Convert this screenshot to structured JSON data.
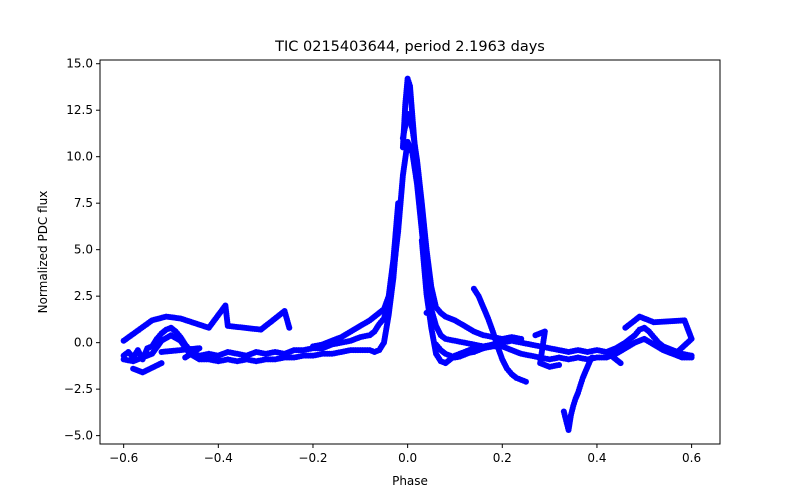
{
  "chart_data": {
    "type": "scatter",
    "title": "TIC 0215403644, period 2.1963 days",
    "xlabel": "Phase",
    "ylabel": "Normalized PDC flux",
    "xlim": [
      -0.65,
      0.66
    ],
    "ylim": [
      -5.45,
      15.2
    ],
    "xticks": [
      -0.6,
      -0.4,
      -0.2,
      0.0,
      0.2,
      0.4,
      0.6
    ],
    "xtick_labels": [
      "−0.6",
      "−0.4",
      "−0.2",
      "0.0",
      "0.2",
      "0.4",
      "0.6"
    ],
    "yticks": [
      -5.0,
      -2.5,
      0.0,
      2.5,
      5.0,
      7.5,
      10.0,
      12.5,
      15.0
    ],
    "ytick_labels": [
      "−5.0",
      "−2.5",
      "0.0",
      "2.5",
      "5.0",
      "7.5",
      "10.0",
      "12.5",
      "15.0"
    ],
    "grid": false,
    "marker_color": "#0000ff",
    "series": [
      {
        "points": [
          [
            -0.6,
            -0.7
          ],
          [
            -0.59,
            -0.5
          ],
          [
            -0.58,
            -0.8
          ],
          [
            -0.57,
            -0.4
          ],
          [
            -0.56,
            -0.9
          ],
          [
            -0.55,
            -0.3
          ],
          [
            -0.54,
            -0.2
          ],
          [
            -0.53,
            0.2
          ],
          [
            -0.52,
            0.5
          ],
          [
            -0.51,
            0.7
          ],
          [
            -0.5,
            0.8
          ],
          [
            -0.49,
            0.6
          ],
          [
            -0.48,
            0.3
          ],
          [
            -0.47,
            -0.1
          ],
          [
            -0.46,
            -0.4
          ],
          [
            -0.45,
            -0.6
          ],
          [
            -0.44,
            -0.7
          ],
          [
            -0.42,
            -0.6
          ],
          [
            -0.4,
            -0.7
          ],
          [
            -0.38,
            -0.5
          ],
          [
            -0.36,
            -0.6
          ],
          [
            -0.34,
            -0.7
          ],
          [
            -0.32,
            -0.5
          ],
          [
            -0.3,
            -0.6
          ],
          [
            -0.28,
            -0.5
          ],
          [
            -0.26,
            -0.6
          ],
          [
            -0.24,
            -0.4
          ],
          [
            -0.22,
            -0.4
          ],
          [
            -0.2,
            -0.3
          ],
          [
            -0.18,
            -0.3
          ],
          [
            -0.16,
            -0.1
          ],
          [
            -0.14,
            0.0
          ],
          [
            -0.12,
            0.1
          ],
          [
            -0.1,
            0.3
          ],
          [
            -0.08,
            0.4
          ],
          [
            -0.07,
            0.6
          ],
          [
            -0.06,
            1.0
          ],
          [
            -0.05,
            1.3
          ],
          [
            -0.04,
            2.2
          ],
          [
            -0.03,
            3.8
          ],
          [
            -0.02,
            6.0
          ],
          [
            -0.01,
            9.0
          ],
          [
            0.0,
            10.8
          ],
          [
            0.01,
            10.2
          ],
          [
            0.02,
            8.5
          ],
          [
            0.03,
            6.0
          ],
          [
            0.04,
            3.5
          ],
          [
            0.05,
            1.8
          ],
          [
            0.06,
            0.9
          ],
          [
            0.07,
            0.4
          ],
          [
            0.08,
            0.2
          ],
          [
            0.1,
            0.1
          ],
          [
            0.12,
            0.0
          ],
          [
            0.14,
            -0.1
          ],
          [
            0.16,
            -0.2
          ],
          [
            0.18,
            -0.1
          ],
          [
            0.2,
            0.0
          ],
          [
            0.22,
            0.1
          ],
          [
            0.24,
            0.0
          ],
          [
            0.26,
            -0.1
          ],
          [
            0.28,
            -0.2
          ],
          [
            0.3,
            -0.3
          ],
          [
            0.32,
            -0.4
          ],
          [
            0.34,
            -0.5
          ],
          [
            0.36,
            -0.4
          ],
          [
            0.38,
            -0.5
          ],
          [
            0.4,
            -0.4
          ],
          [
            0.42,
            -0.5
          ],
          [
            0.44,
            -0.3
          ],
          [
            0.46,
            0.0
          ],
          [
            0.48,
            0.4
          ],
          [
            0.49,
            0.7
          ],
          [
            0.5,
            0.8
          ],
          [
            0.51,
            0.6
          ],
          [
            0.52,
            0.3
          ],
          [
            0.53,
            0.0
          ],
          [
            0.54,
            -0.2
          ],
          [
            0.56,
            -0.4
          ],
          [
            0.58,
            -0.6
          ],
          [
            0.6,
            -0.7
          ]
        ]
      },
      {
        "points": [
          [
            -0.6,
            -0.9
          ],
          [
            -0.58,
            -1.0
          ],
          [
            -0.56,
            -0.8
          ],
          [
            -0.54,
            -0.6
          ],
          [
            -0.52,
            0.1
          ],
          [
            -0.5,
            0.4
          ],
          [
            -0.48,
            0.1
          ],
          [
            -0.46,
            -0.6
          ],
          [
            -0.44,
            -0.9
          ],
          [
            -0.42,
            -0.9
          ],
          [
            -0.4,
            -1.0
          ],
          [
            -0.38,
            -0.9
          ],
          [
            -0.36,
            -1.0
          ],
          [
            -0.34,
            -0.9
          ],
          [
            -0.32,
            -1.0
          ],
          [
            -0.3,
            -0.9
          ],
          [
            -0.28,
            -0.9
          ],
          [
            -0.26,
            -0.8
          ],
          [
            -0.24,
            -0.8
          ],
          [
            -0.22,
            -0.7
          ],
          [
            -0.2,
            -0.7
          ],
          [
            -0.18,
            -0.6
          ],
          [
            -0.16,
            -0.6
          ],
          [
            -0.14,
            -0.5
          ],
          [
            -0.12,
            -0.4
          ],
          [
            -0.1,
            -0.4
          ],
          [
            -0.08,
            -0.4
          ],
          [
            -0.07,
            -0.5
          ],
          [
            -0.06,
            -0.4
          ],
          [
            -0.05,
            0.0
          ],
          [
            -0.04,
            1.5
          ],
          [
            -0.03,
            3.5
          ],
          [
            -0.02,
            6.5
          ],
          [
            -0.01,
            10.5
          ],
          [
            -0.005,
            12.8
          ],
          [
            0.0,
            14.2
          ],
          [
            0.005,
            13.8
          ],
          [
            0.01,
            12.2
          ],
          [
            0.02,
            9.0
          ],
          [
            0.03,
            5.5
          ],
          [
            0.04,
            2.6
          ],
          [
            0.05,
            0.8
          ],
          [
            0.06,
            -0.6
          ],
          [
            0.07,
            -1.0
          ],
          [
            0.08,
            -1.1
          ],
          [
            0.09,
            -0.9
          ],
          [
            0.1,
            -0.7
          ],
          [
            0.11,
            -0.6
          ],
          [
            0.12,
            -0.5
          ],
          [
            0.13,
            -0.4
          ],
          [
            0.14,
            -0.3
          ],
          [
            0.16,
            -0.3
          ],
          [
            0.18,
            -0.2
          ],
          [
            0.2,
            -0.2
          ],
          [
            0.22,
            -0.4
          ],
          [
            0.24,
            -0.6
          ],
          [
            0.26,
            -0.7
          ],
          [
            0.28,
            -0.8
          ],
          [
            0.3,
            -0.9
          ],
          [
            0.32,
            -0.8
          ],
          [
            0.34,
            -0.9
          ],
          [
            0.36,
            -0.8
          ],
          [
            0.38,
            -0.9
          ],
          [
            0.4,
            -0.8
          ],
          [
            0.42,
            -0.8
          ],
          [
            0.44,
            -0.6
          ],
          [
            0.46,
            -0.3
          ],
          [
            0.48,
            0.0
          ],
          [
            0.5,
            0.2
          ],
          [
            0.52,
            -0.1
          ],
          [
            0.54,
            -0.4
          ],
          [
            0.56,
            -0.6
          ],
          [
            0.58,
            -0.8
          ],
          [
            0.6,
            -0.8
          ]
        ]
      },
      {
        "points": [
          [
            -0.2,
            -0.2
          ],
          [
            -0.18,
            -0.1
          ],
          [
            -0.16,
            0.1
          ],
          [
            -0.14,
            0.3
          ],
          [
            -0.12,
            0.6
          ],
          [
            -0.1,
            0.9
          ],
          [
            -0.08,
            1.2
          ],
          [
            -0.07,
            1.4
          ],
          [
            -0.06,
            1.6
          ],
          [
            -0.05,
            1.8
          ],
          [
            -0.04,
            2.5
          ],
          [
            -0.03,
            4.5
          ],
          [
            -0.02,
            7.5
          ],
          [
            -0.01,
            11.0
          ],
          [
            0.0,
            12.3
          ],
          [
            0.01,
            11.5
          ],
          [
            0.02,
            9.8
          ],
          [
            0.03,
            7.5
          ],
          [
            0.04,
            5.0
          ],
          [
            0.05,
            3.0
          ],
          [
            0.06,
            1.9
          ],
          [
            0.07,
            1.6
          ],
          [
            0.08,
            1.4
          ],
          [
            0.1,
            1.2
          ],
          [
            0.12,
            0.9
          ],
          [
            0.14,
            0.6
          ],
          [
            0.16,
            0.4
          ],
          [
            0.18,
            0.3
          ],
          [
            0.2,
            0.2
          ],
          [
            0.22,
            0.3
          ],
          [
            0.24,
            0.2
          ]
        ]
      },
      {
        "points": [
          [
            0.14,
            2.9
          ],
          [
            0.15,
            2.5
          ],
          [
            0.16,
            1.9
          ],
          [
            0.17,
            1.3
          ],
          [
            0.18,
            0.6
          ],
          [
            0.19,
            -0.2
          ],
          [
            0.2,
            -0.9
          ],
          [
            0.21,
            -1.4
          ],
          [
            0.22,
            -1.7
          ],
          [
            0.23,
            -1.9
          ],
          [
            0.24,
            -2.0
          ],
          [
            0.25,
            -2.1
          ]
        ]
      },
      {
        "points": [
          [
            0.06,
            -0.1
          ],
          [
            0.07,
            -0.4
          ],
          [
            0.08,
            -0.6
          ],
          [
            0.09,
            -0.7
          ],
          [
            0.1,
            -0.8
          ],
          [
            0.11,
            -0.75
          ],
          [
            0.12,
            -0.65
          ],
          [
            0.13,
            -0.55
          ],
          [
            0.14,
            -0.5
          ],
          [
            0.15,
            -0.4
          ],
          [
            0.16,
            -0.3
          ],
          [
            0.17,
            -0.2
          ],
          [
            0.18,
            -0.1
          ]
        ]
      },
      {
        "points": [
          [
            0.33,
            -3.7
          ],
          [
            0.335,
            -4.2
          ],
          [
            0.34,
            -4.7
          ],
          [
            0.345,
            -3.9
          ],
          [
            0.35,
            -3.4
          ],
          [
            0.355,
            -3.0
          ],
          [
            0.36,
            -2.7
          ],
          [
            0.365,
            -2.3
          ],
          [
            0.37,
            -1.9
          ],
          [
            0.375,
            -1.6
          ],
          [
            0.38,
            -1.3
          ],
          [
            0.385,
            -1.0
          ],
          [
            0.39,
            -0.8
          ]
        ]
      },
      {
        "points": [
          [
            -0.6,
            0.1
          ],
          [
            -0.54,
            1.2
          ],
          [
            -0.51,
            1.4
          ],
          [
            -0.48,
            1.3
          ],
          [
            -0.42,
            0.8
          ],
          [
            -0.385,
            2.0
          ],
          [
            -0.38,
            0.9
          ],
          [
            -0.31,
            0.7
          ],
          [
            -0.26,
            1.7
          ],
          [
            -0.25,
            0.8
          ],
          [
            -0.52,
            -1.1
          ],
          [
            -0.56,
            -1.6
          ],
          [
            -0.58,
            -1.4
          ],
          [
            0.04,
            1.6
          ],
          [
            0.46,
            0.8
          ],
          [
            0.49,
            1.4
          ],
          [
            0.52,
            1.1
          ],
          [
            0.585,
            1.2
          ],
          [
            0.6,
            0.2
          ],
          [
            0.57,
            -0.5
          ],
          [
            0.42,
            -0.5
          ],
          [
            0.45,
            -1.1
          ],
          [
            0.32,
            -1.2
          ],
          [
            0.3,
            -1.3
          ],
          [
            0.28,
            -1.1
          ],
          [
            0.29,
            0.6
          ],
          [
            0.27,
            0.4
          ],
          [
            -0.52,
            -0.5
          ],
          [
            -0.44,
            -0.3
          ],
          [
            -0.47,
            -0.8
          ]
        ]
      }
    ]
  }
}
